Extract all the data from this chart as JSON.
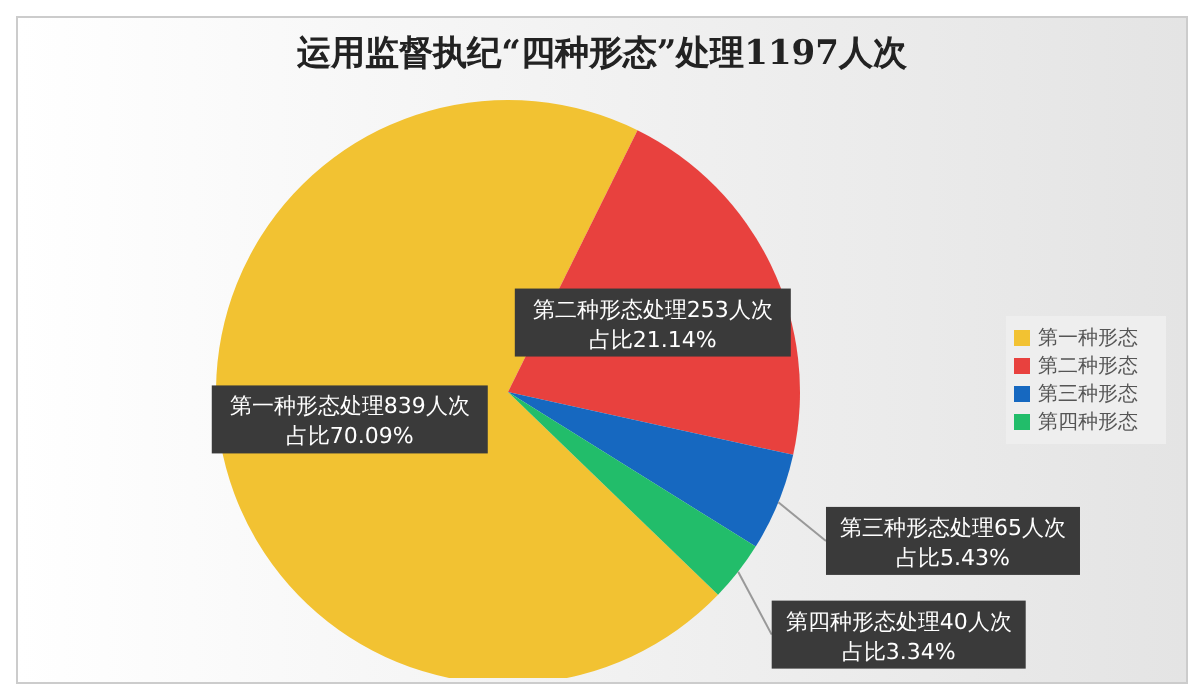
{
  "chart_data": {
    "type": "pie",
    "title": "运用监督执纪“四种形态”处理1197人次",
    "categories": [
      "第一种形态",
      "第二种形态",
      "第三种形态",
      "第四种形态"
    ],
    "values": [
      839,
      253,
      65,
      40
    ],
    "colors": [
      "#f2c232",
      "#e8413e",
      "#1668c0",
      "#22bd6a"
    ],
    "value_labels": [
      "第一种形态处理839人次占比70.09%",
      "第二种形态处理253人次占比21.14%",
      "第三种形态处理65人次占比5.43%",
      "第四种形态处理40人次占比3.34%"
    ],
    "legend": "right"
  }
}
